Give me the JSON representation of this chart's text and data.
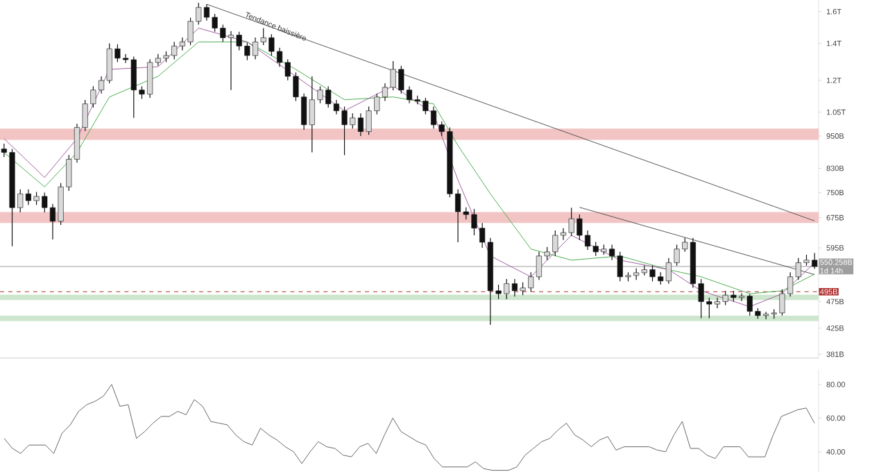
{
  "chart_data": [
    {
      "type": "candlestick",
      "categories": [
        null,
        null,
        null,
        null,
        null,
        null,
        null,
        null,
        null,
        null,
        null,
        null,
        null,
        null,
        null,
        null,
        null,
        null,
        null,
        null,
        null,
        null,
        null,
        null,
        null,
        null,
        null,
        null,
        null,
        null,
        null,
        null,
        null,
        null,
        null,
        null,
        null,
        null,
        null,
        null,
        null,
        null,
        null,
        null,
        null,
        null,
        null,
        null,
        null,
        null,
        null,
        null,
        null,
        null,
        null,
        null,
        null,
        null,
        null,
        null,
        null,
        null,
        null,
        null,
        null,
        null,
        null,
        null,
        null,
        null,
        null,
        null,
        null,
        null,
        null,
        null,
        null,
        null,
        null,
        null,
        null,
        null,
        null,
        null,
        null,
        null,
        null,
        null,
        null,
        null,
        null,
        null,
        null,
        null,
        null,
        null,
        null,
        null,
        null,
        null,
        null
      ],
      "ohlc": [
        [
          900000000000.0,
          920000000000.0,
          870000000000.0,
          887000000000.0
        ],
        [
          887000000000.0,
          900000000000.0,
          599000000000.0,
          704000000000.0
        ],
        [
          704000000000.0,
          760000000000.0,
          690000000000.0,
          746000000000.0
        ],
        [
          746000000000.0,
          760000000000.0,
          712000000000.0,
          725000000000.0
        ],
        [
          725000000000.0,
          752000000000.0,
          712000000000.0,
          738000000000.0
        ],
        [
          738000000000.0,
          750000000000.0,
          690000000000.0,
          704000000000.0
        ],
        [
          704000000000.0,
          715000000000.0,
          616000000000.0,
          665000000000.0
        ],
        [
          665000000000.0,
          780000000000.0,
          655000000000.0,
          768000000000.0
        ],
        [
          768000000000.0,
          878000000000.0,
          755000000000.0,
          862000000000.0
        ],
        [
          862000000000.0,
          1000000000000.0,
          850000000000.0,
          985000000000.0
        ],
        [
          985000000000.0,
          1105000000000.0,
          970000000000.0,
          1087000000000.0
        ],
        [
          1087000000000.0,
          1170000000000.0,
          1070000000000.0,
          1152000000000.0
        ],
        [
          1152000000000.0,
          1220000000000.0,
          1135000000000.0,
          1199000000000.0
        ],
        [
          1199000000000.0,
          1400000000000.0,
          1185000000000.0,
          1369000000000.0
        ],
        [
          1369000000000.0,
          1395000000000.0,
          1295000000000.0,
          1316000000000.0
        ],
        [
          1316000000000.0,
          1340000000000.0,
          1290000000000.0,
          1308000000000.0
        ],
        [
          1308000000000.0,
          1325000000000.0,
          1025000000000.0,
          1152000000000.0
        ],
        [
          1152000000000.0,
          1170000000000.0,
          1110000000000.0,
          1132000000000.0
        ],
        [
          1132000000000.0,
          1310000000000.0,
          1115000000000.0,
          1293000000000.0
        ],
        [
          1293000000000.0,
          1340000000000.0,
          1275000000000.0,
          1316000000000.0
        ],
        [
          1316000000000.0,
          1355000000000.0,
          1295000000000.0,
          1331000000000.0
        ],
        [
          1331000000000.0,
          1410000000000.0,
          1310000000000.0,
          1385000000000.0
        ],
        [
          1385000000000.0,
          1435000000000.0,
          1360000000000.0,
          1409000000000.0
        ],
        [
          1409000000000.0,
          1560000000000.0,
          1390000000000.0,
          1536000000000.0
        ],
        [
          1536000000000.0,
          1660000000000.0,
          1515000000000.0,
          1628000000000.0
        ],
        [
          1628000000000.0,
          1650000000000.0,
          1540000000000.0,
          1562000000000.0
        ],
        [
          1562000000000.0,
          1585000000000.0,
          1470000000000.0,
          1493000000000.0
        ],
        [
          1493000000000.0,
          1515000000000.0,
          1410000000000.0,
          1434000000000.0
        ],
        [
          1434000000000.0,
          1475000000000.0,
          1152000000000.0,
          1450000000000.0
        ],
        [
          1450000000000.0,
          1470000000000.0,
          1360000000000.0,
          1385000000000.0
        ],
        [
          1385000000000.0,
          1405000000000.0,
          1305000000000.0,
          1331000000000.0
        ],
        [
          1331000000000.0,
          1435000000000.0,
          1310000000000.0,
          1409000000000.0
        ],
        [
          1409000000000.0,
          1493000000000.0,
          1390000000000.0,
          1434000000000.0
        ],
        [
          1434000000000.0,
          1455000000000.0,
          1330000000000.0,
          1354000000000.0
        ],
        [
          1354000000000.0,
          1375000000000.0,
          1270000000000.0,
          1293000000000.0
        ],
        [
          1293000000000.0,
          1310000000000.0,
          1200000000000.0,
          1220000000000.0
        ],
        [
          1220000000000.0,
          1240000000000.0,
          1100000000000.0,
          1119000000000.0
        ],
        [
          1119000000000.0,
          1135000000000.0,
          975000000000.0,
          996000000000.0
        ],
        [
          996000000000.0,
          1220000000000.0,
          887000000000.0,
          1106000000000.0
        ],
        [
          1106000000000.0,
          1170000000000.0,
          1090000000000.0,
          1152000000000.0
        ],
        [
          1152000000000.0,
          1170000000000.0,
          1070000000000.0,
          1087000000000.0
        ],
        [
          1087000000000.0,
          1105000000000.0,
          1040000000000.0,
          1056000000000.0
        ],
        [
          1056000000000.0,
          1075000000000.0,
          877000000000.0,
          996000000000.0
        ],
        [
          996000000000.0,
          1045000000000.0,
          980000000000.0,
          1025000000000.0
        ],
        [
          1025000000000.0,
          1045000000000.0,
          950000000000.0,
          968000000000.0
        ],
        [
          968000000000.0,
          1075000000000.0,
          955000000000.0,
          1056000000000.0
        ],
        [
          1056000000000.0,
          1135000000000.0,
          1040000000000.0,
          1119000000000.0
        ],
        [
          1119000000000.0,
          1185000000000.0,
          1100000000000.0,
          1165000000000.0
        ],
        [
          1165000000000.0,
          1300000000000.0,
          1150000000000.0,
          1256000000000.0
        ],
        [
          1256000000000.0,
          1275000000000.0,
          1135000000000.0,
          1152000000000.0
        ],
        [
          1152000000000.0,
          1170000000000.0,
          1090000000000.0,
          1106000000000.0
        ],
        [
          1106000000000.0,
          1125000000000.0,
          1085000000000.0,
          1100000000000.0
        ],
        [
          1100000000000.0,
          1115000000000.0,
          1040000000000.0,
          1056000000000.0
        ],
        [
          1056000000000.0,
          1075000000000.0,
          980000000000.0,
          996000000000.0
        ],
        [
          996000000000.0,
          1010000000000.0,
          950000000000.0,
          968000000000.0
        ],
        [
          968000000000.0,
          985000000000.0,
          735000000000.0,
          746000000000.0
        ],
        [
          746000000000.0,
          760000000000.0,
          609000000000.0,
          692000000000.0
        ],
        [
          692000000000.0,
          705000000000.0,
          670000000000.0,
          684000000000.0
        ],
        [
          684000000000.0,
          700000000000.0,
          627000000000.0,
          646000000000.0
        ],
        [
          646000000000.0,
          660000000000.0,
          595000000000.0,
          609000000000.0
        ],
        [
          609000000000.0,
          620000000000.0,
          431000000000.0,
          497000000000.0
        ],
        [
          497000000000.0,
          510000000000.0,
          480000000000.0,
          491000000000.0
        ],
        [
          491000000000.0,
          522000000000.0,
          480000000000.0,
          512000000000.0
        ],
        [
          512000000000.0,
          522000000000.0,
          485000000000.0,
          497000000000.0
        ],
        [
          497000000000.0,
          515000000000.0,
          488000000000.0,
          503000000000.0
        ],
        [
          503000000000.0,
          537000000000.0,
          495000000000.0,
          527000000000.0
        ],
        [
          527000000000.0,
          585000000000.0,
          520000000000.0,
          575000000000.0
        ],
        [
          575000000000.0,
          597000000000.0,
          565000000000.0,
          585000000000.0
        ],
        [
          585000000000.0,
          640000000000.0,
          575000000000.0,
          627000000000.0
        ],
        [
          627000000000.0,
          646000000000.0,
          615000000000.0,
          634000000000.0
        ],
        [
          634000000000.0,
          704000000000.0,
          625000000000.0,
          672000000000.0
        ],
        [
          672000000000.0,
          684000000000.0,
          615000000000.0,
          627000000000.0
        ],
        [
          627000000000.0,
          640000000000.0,
          590000000000.0,
          599000000000.0
        ],
        [
          599000000000.0,
          610000000000.0,
          575000000000.0,
          585000000000.0
        ],
        [
          585000000000.0,
          603000000000.0,
          578000000000.0,
          592000000000.0
        ],
        [
          592000000000.0,
          603000000000.0,
          565000000000.0,
          575000000000.0
        ],
        [
          575000000000.0,
          585000000000.0,
          517000000000.0,
          527000000000.0
        ],
        [
          527000000000.0,
          537000000000.0,
          517000000000.0,
          530000000000.0
        ],
        [
          530000000000.0,
          546000000000.0,
          520000000000.0,
          536000000000.0
        ],
        [
          536000000000.0,
          553000000000.0,
          530000000000.0,
          543000000000.0
        ],
        [
          543000000000.0,
          553000000000.0,
          517000000000.0,
          527000000000.0
        ],
        [
          527000000000.0,
          537000000000.0,
          510000000000.0,
          518000000000.0
        ],
        [
          518000000000.0,
          570000000000.0,
          512000000000.0,
          559000000000.0
        ],
        [
          559000000000.0,
          603000000000.0,
          552000000000.0,
          592000000000.0
        ],
        [
          592000000000.0,
          620000000000.0,
          585000000000.0,
          609000000000.0
        ],
        [
          609000000000.0,
          620000000000.0,
          503000000000.0,
          512000000000.0
        ],
        [
          512000000000.0,
          522000000000.0,
          443000000000.0,
          475000000000.0
        ],
        [
          475000000000.0,
          483000000000.0,
          443000000000.0,
          470000000000.0
        ],
        [
          470000000000.0,
          483000000000.0,
          462000000000.0,
          475000000000.0
        ],
        [
          475000000000.0,
          497000000000.0,
          468000000000.0,
          488000000000.0
        ],
        [
          488000000000.0,
          497000000000.0,
          475000000000.0,
          483000000000.0
        ],
        [
          483000000000.0,
          492000000000.0,
          476000000000.0,
          486000000000.0
        ],
        [
          486000000000.0,
          490000000000.0,
          448000000000.0,
          456000000000.0
        ],
        [
          456000000000.0,
          462000000000.0,
          442000000000.0,
          448000000000.0
        ],
        [
          448000000000.0,
          455000000000.0,
          441000000000.0,
          451000000000.0
        ],
        [
          451000000000.0,
          460000000000.0,
          442000000000.0,
          453000000000.0
        ],
        [
          453000000000.0,
          500000000000.0,
          448000000000.0,
          491000000000.0
        ],
        [
          491000000000.0,
          537000000000.0,
          485000000000.0,
          527000000000.0
        ],
        [
          527000000000.0,
          570000000000.0,
          520000000000.0,
          559000000000.0
        ],
        [
          559000000000.0,
          578000000000.0,
          552000000000.0,
          565000000000.0
        ],
        [
          565000000000.0,
          582000000000.0,
          545000000000.0,
          550258000000.0
        ]
      ],
      "color": "#111111",
      "series": [
        {
          "type": "line",
          "color": "#4caf50",
          "values": [
            887000000000.0,
            null,
            null,
            null,
            null,
            768000000000.0,
            null,
            null,
            null,
            887000000000.0,
            null,
            null,
            null,
            1119000000000.0,
            null,
            null,
            null,
            null,
            null,
            1220000000000.0,
            null,
            null,
            null,
            null,
            1409000000000.0,
            null,
            null,
            null,
            null,
            null,
            1409000000000.0,
            null,
            null,
            null,
            null,
            null,
            1256000000000.0,
            null,
            null,
            null,
            null,
            null,
            1106000000000.0,
            null,
            null,
            null,
            null,
            null,
            1119000000000.0,
            null,
            null,
            null,
            null,
            1087000000000.0,
            null,
            null,
            913000000000.0,
            null,
            null,
            null,
            746000000000.0,
            null,
            null,
            null,
            null,
            592000000000.0,
            null,
            null,
            null,
            null,
            565000000000.0,
            null,
            null,
            null,
            null,
            null,
            575000000000.0,
            null,
            null,
            null,
            null,
            null,
            543000000000.0,
            null,
            null,
            null,
            527000000000.0,
            null,
            null,
            null,
            null,
            null,
            491000000000.0,
            null,
            null,
            null,
            497000000000.0,
            null,
            null,
            null,
            533000000000.0
          ]
        },
        {
          "type": "line",
          "color": "#a05fa0",
          "values": [
            940000000000.0,
            null,
            null,
            null,
            null,
            799000000000.0,
            null,
            null,
            null,
            940000000000.0,
            null,
            null,
            null,
            1256000000000.0,
            null,
            null,
            null,
            null,
            null,
            1270000000000.0,
            null,
            null,
            null,
            null,
            1493000000000.0,
            null,
            null,
            null,
            null,
            null,
            1409000000000.0,
            null,
            null,
            null,
            null,
            null,
            1220000000000.0,
            null,
            null,
            null,
            null,
            null,
            1056000000000.0,
            null,
            null,
            null,
            null,
            null,
            1172000000000.0,
            null,
            null,
            null,
            null,
            1043000000000.0,
            null,
            null,
            790000000000.0,
            null,
            null,
            null,
            575000000000.0,
            null,
            null,
            null,
            null,
            527000000000.0,
            null,
            null,
            null,
            null,
            627000000000.0,
            null,
            null,
            null,
            null,
            null,
            565000000000.0,
            null,
            null,
            null,
            null,
            null,
            543000000000.0,
            null,
            null,
            null,
            497000000000.0,
            null,
            null,
            null,
            null,
            null,
            465000000000.0,
            null,
            null,
            null,
            491000000000.0,
            null,
            null,
            null,
            559000000000.0
          ]
        },
        {
          "type": "line",
          "color": "#555555",
          "values": [
            null,
            null,
            null,
            null,
            null,
            null,
            null,
            null,
            null,
            null,
            null,
            null,
            null,
            null,
            null,
            null,
            null,
            null,
            null,
            null,
            null,
            null,
            null,
            null,
            null,
            1650000000000.0,
            null,
            null,
            null,
            null,
            null,
            null,
            null,
            null,
            null,
            null,
            null,
            null,
            null,
            null,
            null,
            null,
            null,
            null,
            null,
            null,
            null,
            null,
            null,
            null,
            null,
            null,
            null,
            null,
            null,
            null,
            null,
            null,
            null,
            null,
            null,
            null,
            null,
            null,
            null,
            null,
            null,
            null,
            null,
            null,
            null,
            null,
            null,
            null,
            null,
            null,
            null,
            null,
            null,
            null,
            null,
            null,
            null,
            null,
            null,
            null,
            null,
            null,
            null,
            null,
            null,
            null,
            null,
            null,
            null,
            null,
            null,
            null,
            null,
            null,
            666000000000.0
          ]
        },
        {
          "type": "line",
          "color": "#555555",
          "values": [
            null,
            null,
            null,
            null,
            null,
            null,
            null,
            null,
            null,
            null,
            null,
            null,
            null,
            null,
            null,
            null,
            null,
            null,
            null,
            null,
            null,
            null,
            null,
            null,
            null,
            null,
            null,
            null,
            null,
            null,
            null,
            null,
            null,
            null,
            null,
            null,
            null,
            null,
            null,
            null,
            null,
            null,
            null,
            null,
            null,
            null,
            null,
            null,
            null,
            null,
            null,
            null,
            null,
            null,
            null,
            null,
            null,
            null,
            null,
            null,
            null,
            null,
            null,
            null,
            null,
            null,
            null,
            null,
            null,
            null,
            null,
            705000000000.0,
            null,
            null,
            null,
            null,
            null,
            null,
            null,
            null,
            null,
            null,
            null,
            null,
            null,
            null,
            null,
            null,
            null,
            null,
            null,
            null,
            null,
            null,
            null,
            null,
            null,
            null,
            null,
            null,
            532000000000.0
          ]
        }
      ],
      "log": true,
      "ylim": [
        375000000000.0,
        1680000000000.0
      ],
      "yticks": [
        {
          "value": 1600000000000.0,
          "label": "1.6T"
        },
        {
          "value": 1400000000000.0,
          "label": "1.4T"
        },
        {
          "value": 1200000000000.0,
          "label": "1.2T"
        },
        {
          "value": 1050000000000.0,
          "label": "1.05T"
        },
        {
          "value": 950000000000.0,
          "label": "950B"
        },
        {
          "value": 830000000000.0,
          "label": "830B"
        },
        {
          "value": 750000000000.0,
          "label": "750B"
        },
        {
          "value": 675000000000.0,
          "label": "675B"
        },
        {
          "value": 595000000000.0,
          "label": "595B"
        },
        {
          "value": 475000000000.0,
          "label": "475B"
        },
        {
          "value": 425000000000.0,
          "label": "425B"
        },
        {
          "value": 381000000000.0,
          "label": "381B"
        }
      ],
      "tick_labels": "y",
      "bands": [
        {
          "axis": "y",
          "from": 935000000000.0,
          "to": 980000000000.0,
          "color": "#f3c4c4"
        },
        {
          "axis": "y",
          "from": 660000000000.0,
          "to": 691000000000.0,
          "color": "#f3c4c4"
        },
        {
          "axis": "y",
          "from": 478000000000.0,
          "to": 489000000000.0,
          "color": "#cde6cd"
        },
        {
          "axis": "y",
          "from": 438000000000.0,
          "to": 448000000000.0,
          "color": "#cde6cd"
        }
      ],
      "ref_lines": [
        {
          "axis": "y",
          "value": 550258000000.0,
          "label": "550.258B",
          "color": "#9e9e9e",
          "line_style": "solid"
        },
        {
          "axis": "y",
          "value": 495000000000.0,
          "label": "495B",
          "color": "#b03030",
          "line_style": "dashed"
        }
      ],
      "annotations": [
        "Tendance baissière",
        "1d 14h"
      ]
    },
    {
      "type": "line",
      "categories": [
        null,
        null,
        null,
        null,
        null,
        null,
        null,
        null,
        null,
        null,
        null,
        null,
        null,
        null,
        null,
        null,
        null,
        null,
        null,
        null,
        null,
        null,
        null,
        null,
        null,
        null,
        null,
        null,
        null,
        null,
        null,
        null,
        null,
        null,
        null,
        null,
        null,
        null,
        null,
        null,
        null,
        null,
        null,
        null,
        null,
        null,
        null,
        null,
        null,
        null,
        null,
        null,
        null,
        null,
        null,
        null,
        null,
        null,
        null,
        null,
        null,
        null,
        null,
        null,
        null,
        null,
        null,
        null,
        null,
        null,
        null,
        null,
        null,
        null,
        null,
        null,
        null,
        null,
        null,
        null,
        null,
        null,
        null,
        null,
        null,
        null,
        null,
        null,
        null,
        null,
        null,
        null,
        null,
        null,
        null,
        null,
        null,
        null,
        null
      ],
      "values": [
        48,
        42,
        39,
        44,
        44,
        44,
        39,
        51,
        56,
        64,
        68,
        70,
        73,
        80,
        67,
        68,
        48,
        52,
        57,
        61,
        61,
        64,
        62,
        71,
        67,
        58,
        57,
        56,
        50,
        46,
        44,
        54,
        50,
        47,
        43,
        40,
        33,
        40,
        46,
        43,
        42,
        38,
        37,
        43,
        45,
        39,
        50,
        60,
        52,
        49,
        46,
        44,
        36,
        31,
        31,
        31,
        31,
        34,
        30,
        29,
        29,
        29,
        31,
        38,
        42,
        46,
        48,
        53,
        57,
        50,
        47,
        43,
        47,
        49,
        41,
        43,
        43,
        43,
        43,
        41,
        40,
        50,
        58,
        42,
        42,
        38,
        36,
        43,
        43,
        43,
        37,
        37,
        37,
        50,
        61,
        63,
        65,
        66,
        57
      ],
      "color": "#666666",
      "ylim": [
        28,
        89
      ],
      "yticks": [
        {
          "value": 80,
          "label": "80.00"
        },
        {
          "value": 60,
          "label": "60.00"
        },
        {
          "value": 40,
          "label": "40.00"
        }
      ],
      "tick_labels": "y"
    }
  ]
}
